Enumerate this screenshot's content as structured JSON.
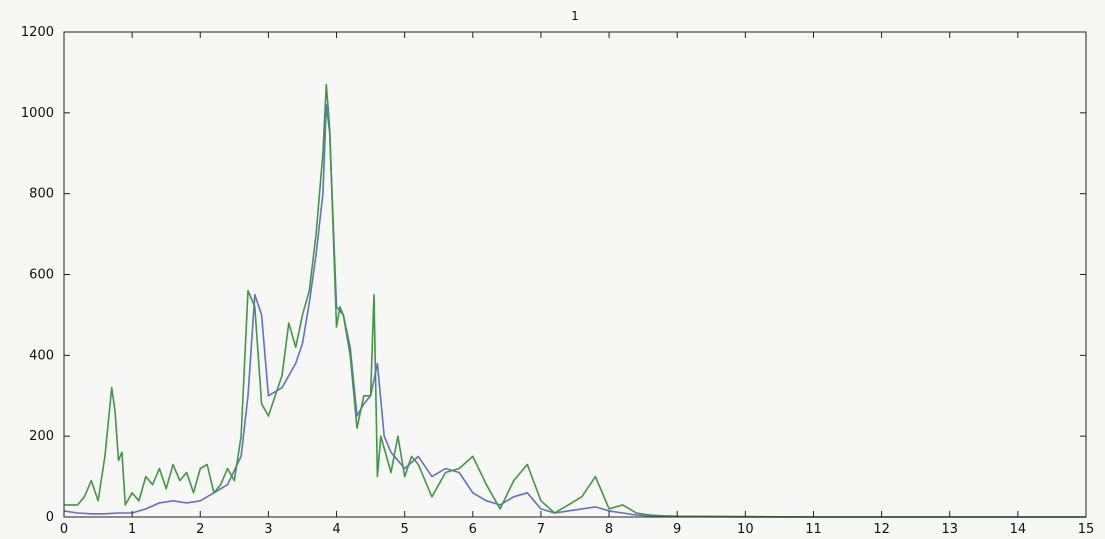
{
  "chart_data": {
    "type": "line",
    "title": "1",
    "xlabel": "",
    "ylabel": "",
    "xlim": [
      0,
      15
    ],
    "ylim": [
      0,
      1200
    ],
    "xticks": [
      "0",
      "1",
      "2",
      "3",
      "4",
      "5",
      "6",
      "7",
      "8",
      "9",
      "10",
      "11",
      "12",
      "13",
      "14",
      "15"
    ],
    "yticks": [
      "0",
      "200",
      "400",
      "600",
      "800",
      "1000",
      "1200"
    ],
    "grid": false,
    "legend": "none",
    "series": [
      {
        "color": "#5e6fd6",
        "x": [
          0,
          0.2,
          0.4,
          0.6,
          0.8,
          1.0,
          1.2,
          1.4,
          1.6,
          1.8,
          2.0,
          2.2,
          2.4,
          2.6,
          2.7,
          2.8,
          2.9,
          3.0,
          3.2,
          3.4,
          3.5,
          3.6,
          3.7,
          3.8,
          3.85,
          3.9,
          4.0,
          4.1,
          4.2,
          4.3,
          4.4,
          4.5,
          4.6,
          4.7,
          4.8,
          5.0,
          5.2,
          5.4,
          5.6,
          5.8,
          6.0,
          6.2,
          6.4,
          6.6,
          6.8,
          7.0,
          7.2,
          7.4,
          7.6,
          7.8,
          8.0,
          8.2,
          8.4,
          8.6,
          8.8,
          9.0,
          10,
          11,
          12,
          13,
          14,
          15
        ],
        "y": [
          15,
          10,
          8,
          8,
          10,
          10,
          20,
          35,
          40,
          35,
          40,
          60,
          80,
          150,
          300,
          550,
          500,
          300,
          320,
          380,
          430,
          530,
          650,
          800,
          1020,
          950,
          520,
          500,
          420,
          250,
          280,
          300,
          380,
          200,
          160,
          120,
          150,
          100,
          120,
          110,
          60,
          40,
          30,
          50,
          60,
          20,
          10,
          15,
          20,
          25,
          15,
          10,
          5,
          3,
          2,
          1,
          0,
          0,
          0,
          0,
          0,
          0
        ]
      },
      {
        "color": "#3d9a3d",
        "x": [
          0,
          0.2,
          0.3,
          0.4,
          0.5,
          0.6,
          0.7,
          0.75,
          0.8,
          0.85,
          0.9,
          1.0,
          1.1,
          1.2,
          1.3,
          1.4,
          1.5,
          1.6,
          1.7,
          1.8,
          1.9,
          2.0,
          2.1,
          2.2,
          2.3,
          2.4,
          2.5,
          2.6,
          2.7,
          2.8,
          2.9,
          3.0,
          3.1,
          3.2,
          3.3,
          3.4,
          3.5,
          3.6,
          3.7,
          3.8,
          3.85,
          3.9,
          4.0,
          4.05,
          4.1,
          4.2,
          4.3,
          4.4,
          4.5,
          4.55,
          4.6,
          4.65,
          4.7,
          4.8,
          4.9,
          5.0,
          5.1,
          5.2,
          5.4,
          5.6,
          5.8,
          6.0,
          6.2,
          6.4,
          6.6,
          6.8,
          7.0,
          7.2,
          7.4,
          7.6,
          7.8,
          8.0,
          8.2,
          8.4,
          8.6,
          8.8,
          9.0,
          10,
          11,
          12,
          13,
          14,
          15
        ],
        "y": [
          30,
          30,
          50,
          90,
          40,
          150,
          320,
          260,
          140,
          160,
          30,
          60,
          40,
          100,
          80,
          120,
          70,
          130,
          90,
          110,
          60,
          120,
          130,
          60,
          80,
          120,
          90,
          200,
          560,
          520,
          280,
          250,
          300,
          350,
          480,
          420,
          500,
          560,
          700,
          900,
          1070,
          960,
          470,
          520,
          500,
          400,
          220,
          300,
          300,
          550,
          100,
          200,
          170,
          110,
          200,
          100,
          150,
          130,
          50,
          110,
          120,
          150,
          80,
          20,
          90,
          130,
          40,
          10,
          30,
          50,
          100,
          20,
          30,
          10,
          5,
          3,
          2,
          1,
          0,
          0,
          0,
          0,
          0
        ]
      }
    ]
  }
}
